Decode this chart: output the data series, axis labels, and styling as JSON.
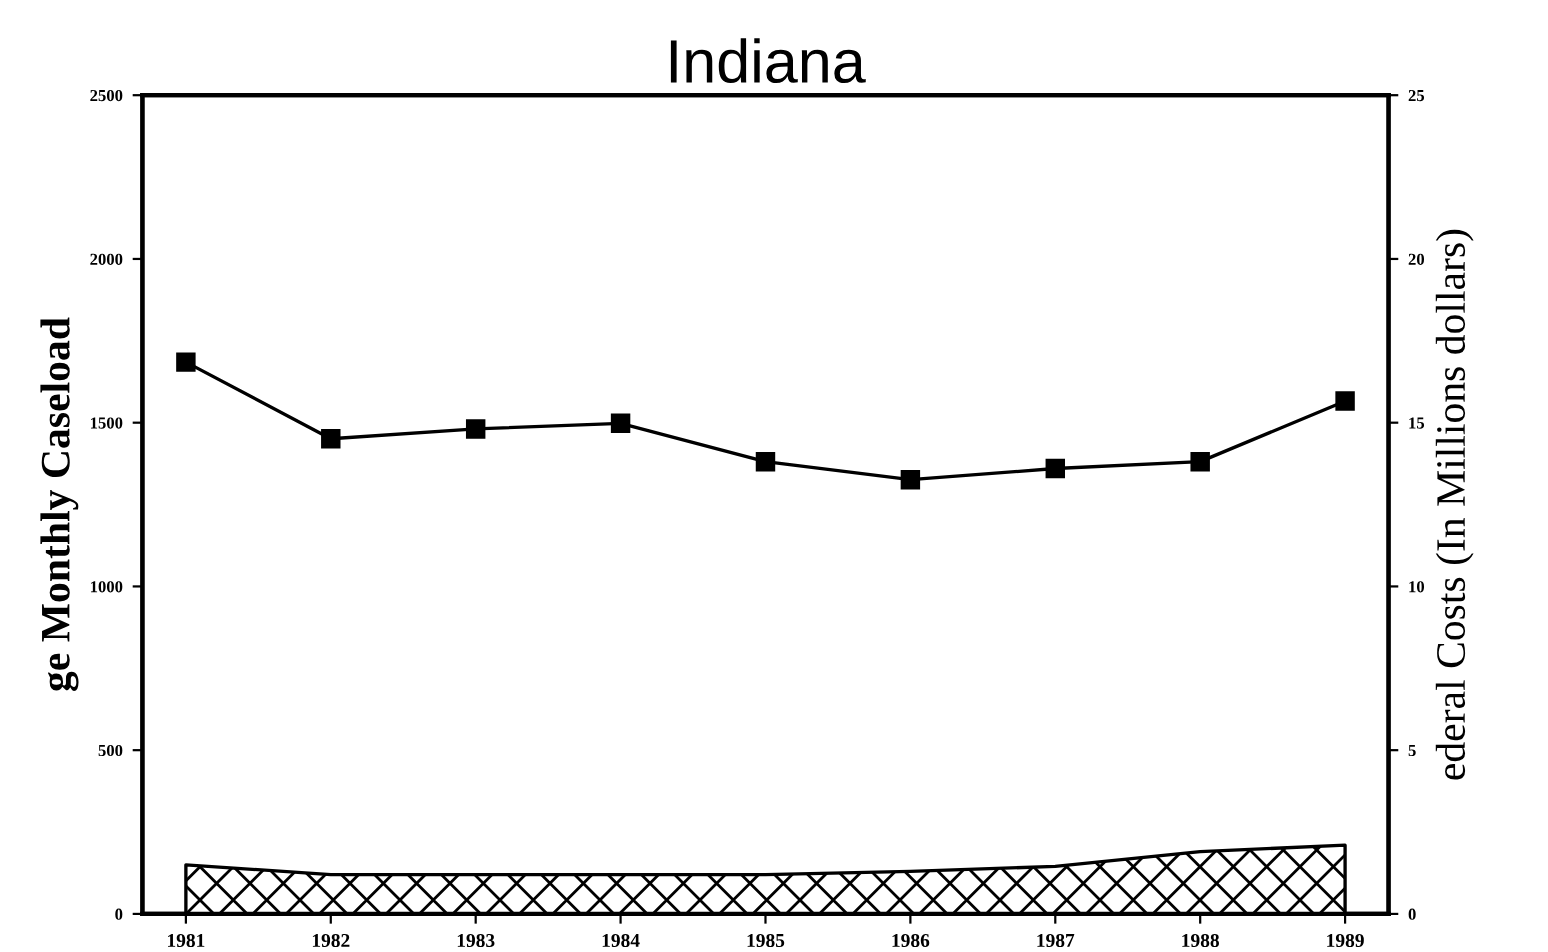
{
  "chart_data": {
    "type": "line",
    "title": "Indiana",
    "ylabel": "ge Monthly Caseload",
    "y2label": "ederal Costs (In Millions dollars)",
    "categories": [
      "1981",
      "1982",
      "1983",
      "1984",
      "1985",
      "1986",
      "1987",
      "1988",
      "1989"
    ],
    "series": [
      {
        "color": "#000000",
        "marker": "square",
        "values": [
          1685,
          1451,
          1481,
          1498,
          1381,
          1326,
          1360,
          1381,
          1566
        ]
      },
      {
        "type": "area",
        "axis": "y2",
        "color": "#000000",
        "values": [
          1.5,
          1.2,
          1.2,
          1.2,
          1.2,
          1.3,
          1.45,
          1.9,
          2.1
        ]
      }
    ],
    "ylim": [
      0,
      2500
    ],
    "yticks": [
      0,
      500,
      1000,
      1500,
      2000,
      2500
    ],
    "y2lim": [
      0,
      25
    ],
    "y2ticks": [
      0,
      5,
      10,
      15,
      20,
      25
    ],
    "grid": false,
    "legend": false
  }
}
